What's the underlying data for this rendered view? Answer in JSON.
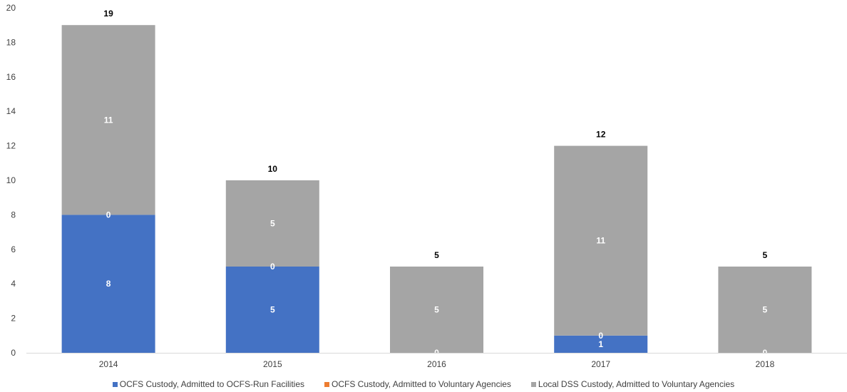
{
  "chart_data": {
    "type": "bar",
    "stacked": true,
    "categories": [
      "2014",
      "2015",
      "2016",
      "2017",
      "2018"
    ],
    "series": [
      {
        "name": "OCFS Custody, Admitted to OCFS-Run Facilities",
        "values": [
          8,
          5,
          0,
          1,
          0
        ],
        "color": "#4472c4"
      },
      {
        "name": "OCFS Custody, Admitted to Voluntary Agencies",
        "values": [
          0,
          0,
          0,
          0,
          0
        ],
        "color": "#ed7d31"
      },
      {
        "name": "Local DSS Custody, Admitted to Voluntary Agencies",
        "values": [
          11,
          5,
          5,
          11,
          5
        ],
        "color": "#a5a5a5"
      }
    ],
    "totals": [
      19,
      10,
      5,
      12,
      5
    ],
    "segment_labels": [
      [
        "8",
        "5",
        "0",
        "1",
        "0"
      ],
      [
        "0",
        "0",
        null,
        "0",
        null
      ],
      [
        "11",
        "5",
        "5",
        "11",
        "5"
      ]
    ],
    "ylim": [
      0,
      20
    ],
    "yticks": [
      0,
      2,
      4,
      6,
      8,
      10,
      12,
      14,
      16,
      18,
      20
    ],
    "grid": false,
    "legend_position": "bottom",
    "title": "",
    "xlabel": "",
    "ylabel": ""
  }
}
